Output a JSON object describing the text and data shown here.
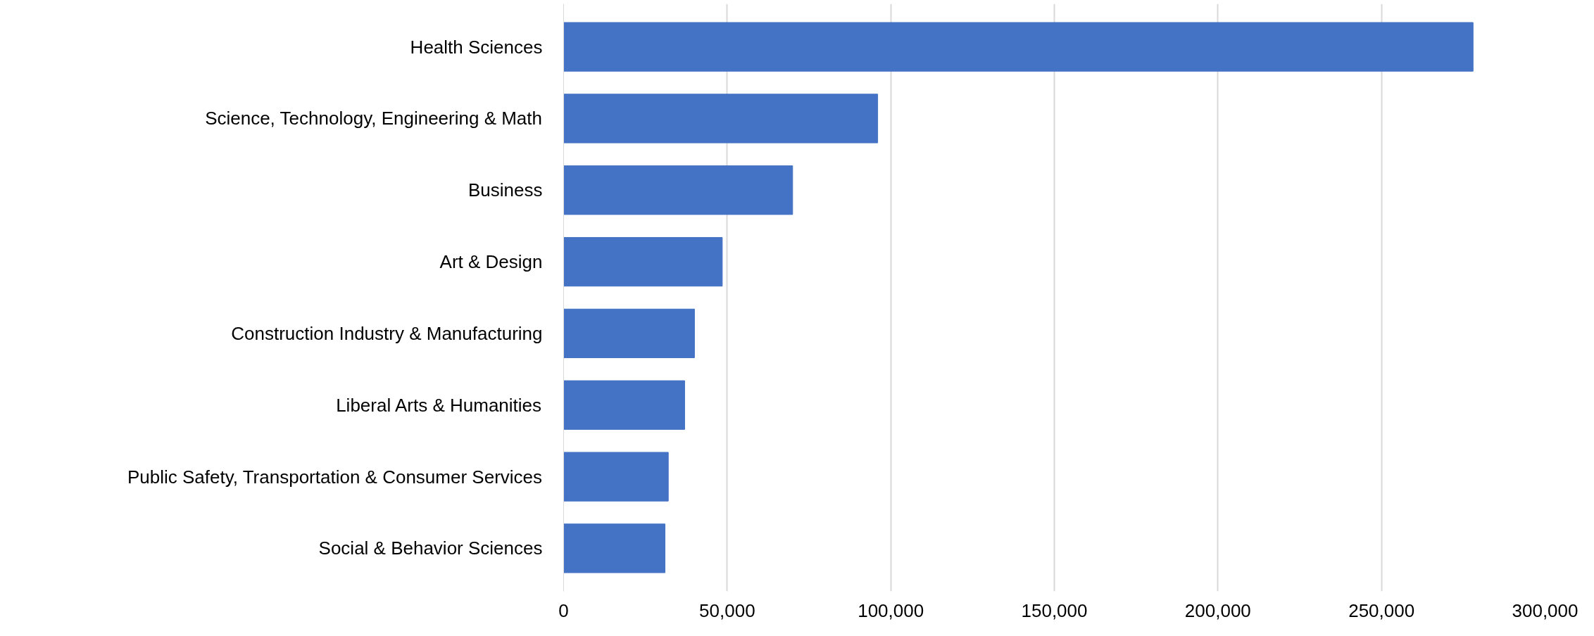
{
  "chart_data": {
    "type": "bar",
    "orientation": "horizontal",
    "categories": [
      "Health Sciences",
      "Science, Technology, Engineering & Math",
      "Business",
      "Art & Design",
      "Construction Industry & Manufacturing",
      "Liberal Arts & Humanities",
      "Public Safety, Transportation & Consumer Services",
      "Social & Behavior Sciences"
    ],
    "values": [
      278000,
      96000,
      70000,
      48500,
      40000,
      37000,
      32000,
      31000
    ],
    "color": "#4472c4",
    "xlim": [
      0,
      300000
    ],
    "xticks": [
      {
        "value": 0,
        "label": "0"
      },
      {
        "value": 50000,
        "label": "50,000"
      },
      {
        "value": 100000,
        "label": "100,000"
      },
      {
        "value": 150000,
        "label": "150,000"
      },
      {
        "value": 200000,
        "label": "200,000"
      },
      {
        "value": 250000,
        "label": "250,000"
      },
      {
        "value": 300000,
        "label": "300,000"
      }
    ],
    "grid": "x"
  }
}
